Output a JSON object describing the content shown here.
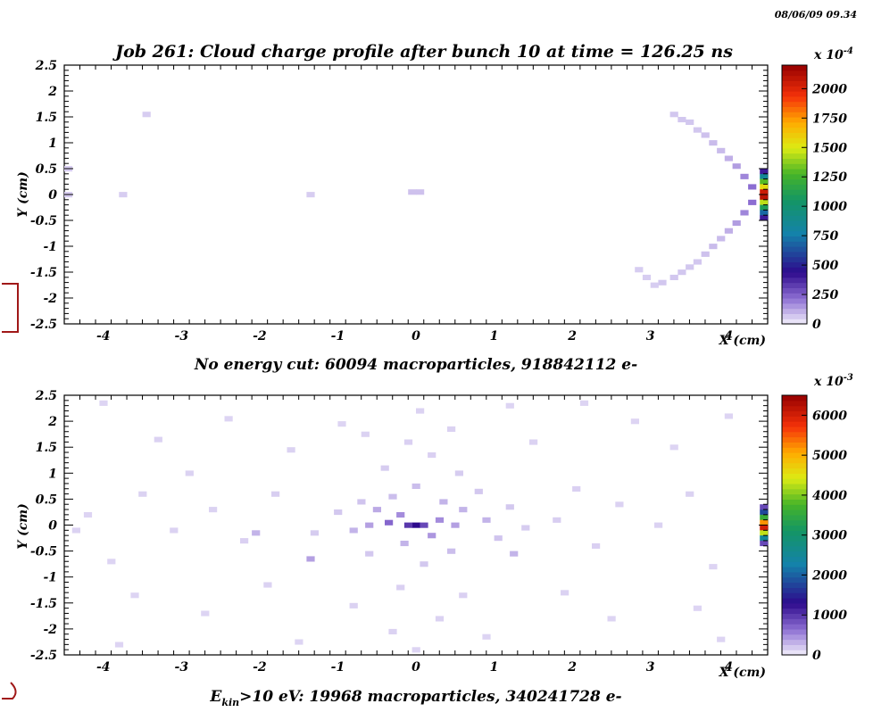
{
  "timestamp": "08/06/09  09.34",
  "chart_data": [
    {
      "type": "heatmap",
      "title": "Job 261: Cloud charge profile after bunch 10 at time = 126.25 ns",
      "xlabel": "X (cm)",
      "ylabel": "Y (cm)",
      "xlim": [
        -4.5,
        4.5
      ],
      "ylim": [
        -2.5,
        2.5
      ],
      "x_ticks": [
        "-4",
        "-3",
        "-2",
        "-1",
        "0",
        "1",
        "2",
        "3",
        "4"
      ],
      "y_ticks": [
        "2.5",
        "2",
        "1.5",
        "1",
        "0.5",
        "0",
        "-0.5",
        "-1",
        "-1.5",
        "-2",
        "-2.5"
      ],
      "colorbar_ticks": [
        "2000",
        "1750",
        "1500",
        "1250",
        "1000",
        "750",
        "500",
        "250",
        "0"
      ],
      "colorbar_max": 2200,
      "colorbar_scale_base": "x 10",
      "colorbar_scale_exp": "-4",
      "footer": "No energy cut: 60094 macroparticles, 918842112 e-",
      "cells": [
        [
          -4.45,
          0.5,
          60
        ],
        [
          -4.45,
          0.0,
          60
        ],
        [
          -3.75,
          0.0,
          60
        ],
        [
          -3.45,
          1.55,
          60
        ],
        [
          -1.35,
          0.0,
          60
        ],
        [
          -0.05,
          0.05,
          80
        ],
        [
          0.05,
          0.05,
          80
        ],
        [
          3.3,
          1.55,
          70
        ],
        [
          3.4,
          1.45,
          70
        ],
        [
          3.5,
          1.4,
          70
        ],
        [
          3.6,
          1.25,
          70
        ],
        [
          3.7,
          1.15,
          80
        ],
        [
          3.8,
          1.0,
          90
        ],
        [
          3.9,
          0.85,
          90
        ],
        [
          4.0,
          0.7,
          110
        ],
        [
          4.1,
          0.55,
          140
        ],
        [
          4.2,
          0.35,
          180
        ],
        [
          4.3,
          0.15,
          220
        ],
        [
          4.3,
          -0.15,
          220
        ],
        [
          4.2,
          -0.35,
          180
        ],
        [
          4.1,
          -0.55,
          140
        ],
        [
          4.0,
          -0.7,
          110
        ],
        [
          3.9,
          -0.85,
          90
        ],
        [
          3.8,
          -1.0,
          90
        ],
        [
          3.7,
          -1.15,
          80
        ],
        [
          3.6,
          -1.3,
          70
        ],
        [
          3.5,
          -1.4,
          70
        ],
        [
          3.4,
          -1.5,
          70
        ],
        [
          3.3,
          -1.6,
          70
        ],
        [
          3.15,
          -1.7,
          70
        ],
        [
          2.85,
          -1.45,
          60
        ],
        [
          2.95,
          -1.6,
          60
        ],
        [
          3.05,
          -1.75,
          60
        ],
        [
          4.45,
          0.35,
          850
        ],
        [
          4.45,
          0.25,
          1300
        ],
        [
          4.45,
          0.15,
          1550
        ],
        [
          4.45,
          0.05,
          2050
        ],
        [
          4.45,
          -0.05,
          2100
        ],
        [
          4.45,
          -0.15,
          1450
        ],
        [
          4.45,
          -0.25,
          1100
        ],
        [
          4.45,
          -0.35,
          700
        ],
        [
          4.45,
          0.45,
          400
        ],
        [
          4.45,
          -0.45,
          400
        ]
      ]
    },
    {
      "type": "heatmap",
      "title": "",
      "xlabel": "X (cm)",
      "ylabel": "Y (cm)",
      "xlim": [
        -4.5,
        4.5
      ],
      "ylim": [
        -2.5,
        2.5
      ],
      "x_ticks": [
        "-4",
        "-3",
        "-2",
        "-1",
        "0",
        "1",
        "2",
        "3",
        "4"
      ],
      "y_ticks": [
        "2.5",
        "2",
        "1.5",
        "1",
        "0.5",
        "0",
        "-0.5",
        "-1",
        "-1.5",
        "-2",
        "-2.5"
      ],
      "colorbar_ticks": [
        "6000",
        "5000",
        "4000",
        "3000",
        "2000",
        "1000",
        "0"
      ],
      "colorbar_max": 6500,
      "colorbar_scale_base": "x 10",
      "colorbar_scale_exp": "-3",
      "footer_pre": "E",
      "footer_sub": "kin",
      "footer_post": ">10 eV: 19968 macroparticles, 340241728  e-",
      "cells": [
        [
          0.0,
          0.0,
          1300
        ],
        [
          -0.1,
          0.0,
          1000
        ],
        [
          0.1,
          0.0,
          900
        ],
        [
          -0.35,
          0.05,
          700
        ],
        [
          -0.2,
          0.2,
          500
        ],
        [
          0.3,
          0.1,
          500
        ],
        [
          0.5,
          0.0,
          400
        ],
        [
          -0.6,
          0.0,
          400
        ],
        [
          0.2,
          -0.2,
          450
        ],
        [
          -0.5,
          0.3,
          350
        ],
        [
          0.6,
          0.3,
          300
        ],
        [
          0.9,
          0.1,
          300
        ],
        [
          -0.8,
          -0.1,
          300
        ],
        [
          -0.15,
          -0.35,
          300
        ],
        [
          0.35,
          0.45,
          300
        ],
        [
          -0.3,
          0.55,
          250
        ],
        [
          0.0,
          0.75,
          250
        ],
        [
          0.45,
          -0.5,
          250
        ],
        [
          -0.7,
          0.45,
          220
        ],
        [
          1.05,
          -0.25,
          220
        ],
        [
          -1.0,
          0.25,
          200
        ],
        [
          1.2,
          0.35,
          200
        ],
        [
          0.8,
          0.65,
          200
        ],
        [
          -0.6,
          -0.55,
          200
        ],
        [
          0.1,
          -0.75,
          200
        ],
        [
          -1.3,
          -0.15,
          180
        ],
        [
          1.4,
          -0.05,
          180
        ],
        [
          0.55,
          1.0,
          180
        ],
        [
          -0.4,
          1.1,
          180
        ],
        [
          0.2,
          1.35,
          160
        ],
        [
          -0.1,
          1.6,
          160
        ],
        [
          0.45,
          1.85,
          150
        ],
        [
          -0.65,
          1.75,
          150
        ],
        [
          0.05,
          2.2,
          150
        ],
        [
          -0.2,
          -1.2,
          160
        ],
        [
          0.6,
          -1.35,
          160
        ],
        [
          -0.8,
          -1.55,
          150
        ],
        [
          0.3,
          -1.8,
          150
        ],
        [
          -0.3,
          -2.05,
          150
        ],
        [
          0.9,
          -2.15,
          140
        ],
        [
          -1.5,
          -2.25,
          140
        ],
        [
          0.0,
          -2.4,
          140
        ],
        [
          1.8,
          0.1,
          170
        ],
        [
          2.05,
          0.7,
          160
        ],
        [
          2.3,
          -0.4,
          160
        ],
        [
          2.6,
          0.4,
          150
        ],
        [
          3.1,
          0.0,
          150
        ],
        [
          3.5,
          0.6,
          150
        ],
        [
          3.8,
          -0.8,
          140
        ],
        [
          3.3,
          1.5,
          140
        ],
        [
          2.8,
          2.0,
          140
        ],
        [
          1.5,
          1.6,
          150
        ],
        [
          1.9,
          -1.3,
          150
        ],
        [
          2.5,
          -1.8,
          140
        ],
        [
          3.6,
          -1.6,
          140
        ],
        [
          1.2,
          2.3,
          140
        ],
        [
          -1.8,
          0.6,
          170
        ],
        [
          -2.2,
          -0.3,
          160
        ],
        [
          -2.6,
          0.3,
          150
        ],
        [
          -3.1,
          -0.1,
          150
        ],
        [
          -3.5,
          0.6,
          150
        ],
        [
          -3.9,
          -0.7,
          140
        ],
        [
          -2.9,
          1.0,
          150
        ],
        [
          -3.3,
          1.65,
          150
        ],
        [
          -2.4,
          2.05,
          140
        ],
        [
          -1.6,
          1.45,
          150
        ],
        [
          -1.9,
          -1.15,
          150
        ],
        [
          -2.7,
          -1.7,
          140
        ],
        [
          -3.6,
          -1.35,
          140
        ],
        [
          -4.2,
          0.2,
          140
        ],
        [
          -4.35,
          -0.1,
          150
        ],
        [
          -1.35,
          -0.65,
          400
        ],
        [
          -2.05,
          -0.15,
          300
        ],
        [
          1.25,
          -0.55,
          300
        ],
        [
          -0.95,
          1.95,
          140
        ],
        [
          2.15,
          2.35,
          140
        ],
        [
          4.0,
          2.1,
          140
        ],
        [
          -4.0,
          2.35,
          140
        ],
        [
          3.9,
          -2.2,
          140
        ],
        [
          -3.8,
          -2.3,
          140
        ],
        [
          4.45,
          0.25,
          1800
        ],
        [
          4.45,
          0.15,
          3600
        ],
        [
          4.45,
          0.05,
          5200
        ],
        [
          4.45,
          -0.05,
          6000
        ],
        [
          4.45,
          -0.15,
          4300
        ],
        [
          4.45,
          -0.25,
          2500
        ],
        [
          4.45,
          0.35,
          900
        ],
        [
          4.45,
          -0.35,
          900
        ]
      ]
    }
  ]
}
